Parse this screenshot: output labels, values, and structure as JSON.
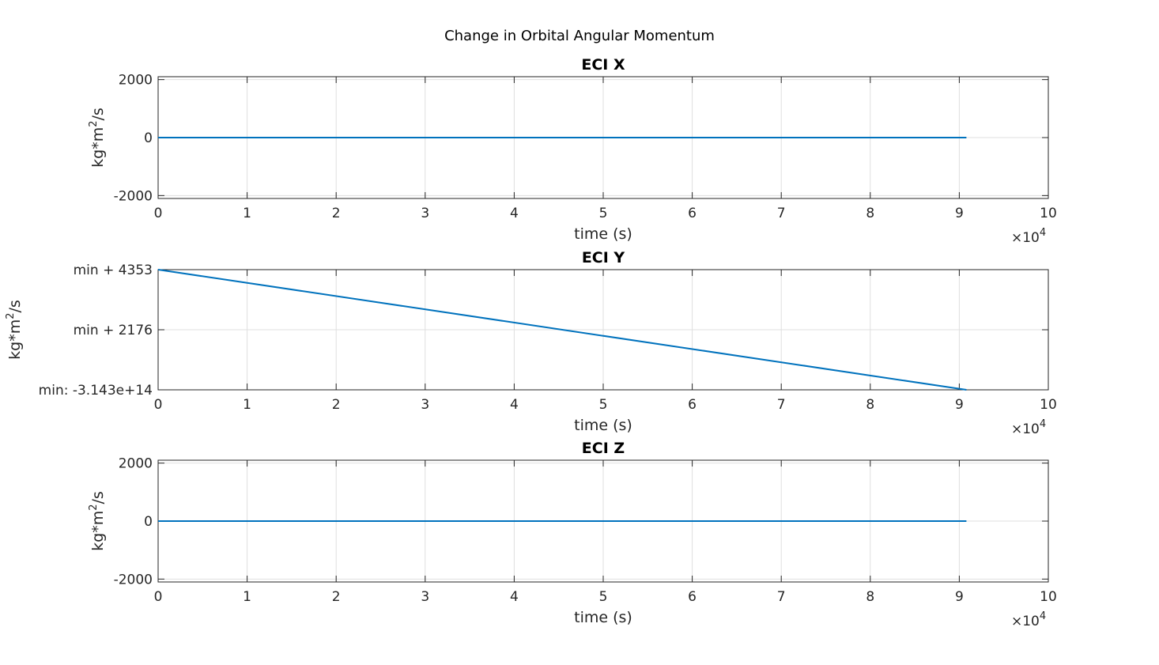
{
  "figure": {
    "title": "Change in Orbital Angular Momentum"
  },
  "chart_data": [
    {
      "type": "line",
      "title": "ECI X",
      "xlabel": "time (s)",
      "ylabel": "kg*m²/s",
      "ylabel_base": "kg*m",
      "ylabel_sup": "2",
      "ylabel_tail": "/s",
      "x_exponent_label": "×10",
      "x_exponent": "4",
      "xlim": [
        0,
        10
      ],
      "ylim": [
        -2100,
        2100
      ],
      "xticks": [
        0,
        1,
        2,
        3,
        4,
        5,
        6,
        7,
        8,
        9,
        10
      ],
      "xtick_labels": [
        "0",
        "1",
        "2",
        "3",
        "4",
        "5",
        "6",
        "7",
        "8",
        "9",
        "10"
      ],
      "yticks": [
        -2000,
        0,
        2000
      ],
      "ytick_labels": [
        "-2000",
        "0",
        "2000"
      ],
      "grid": true,
      "series": [
        {
          "x": [
            0,
            9.08
          ],
          "y": [
            0,
            0
          ],
          "color": "#0072bd"
        }
      ]
    },
    {
      "type": "line",
      "title": "ECI Y",
      "xlabel": "time (s)",
      "ylabel": "kg*m²/s",
      "ylabel_base": "kg*m",
      "ylabel_sup": "2",
      "ylabel_tail": "/s",
      "x_exponent_label": "×10",
      "x_exponent": "4",
      "xlim": [
        0,
        10
      ],
      "ylim": [
        0,
        4353
      ],
      "xticks": [
        0,
        1,
        2,
        3,
        4,
        5,
        6,
        7,
        8,
        9,
        10
      ],
      "xtick_labels": [
        "0",
        "1",
        "2",
        "3",
        "4",
        "5",
        "6",
        "7",
        "8",
        "9",
        "10"
      ],
      "yticks": [
        0,
        2176,
        4353
      ],
      "ytick_labels": [
        "min: -3.143e+14",
        "min + 2176",
        "min + 4353"
      ],
      "grid": true,
      "series": [
        {
          "x": [
            0,
            9.08
          ],
          "y": [
            4353,
            0
          ],
          "color": "#0072bd"
        }
      ]
    },
    {
      "type": "line",
      "title": "ECI Z",
      "xlabel": "time (s)",
      "ylabel": "kg*m²/s",
      "ylabel_base": "kg*m",
      "ylabel_sup": "2",
      "ylabel_tail": "/s",
      "x_exponent_label": "×10",
      "x_exponent": "4",
      "xlim": [
        0,
        10
      ],
      "ylim": [
        -2100,
        2100
      ],
      "xticks": [
        0,
        1,
        2,
        3,
        4,
        5,
        6,
        7,
        8,
        9,
        10
      ],
      "xtick_labels": [
        "0",
        "1",
        "2",
        "3",
        "4",
        "5",
        "6",
        "7",
        "8",
        "9",
        "10"
      ],
      "yticks": [
        -2000,
        0,
        2000
      ],
      "ytick_labels": [
        "-2000",
        "0",
        "2000"
      ],
      "grid": true,
      "series": [
        {
          "x": [
            0,
            9.08
          ],
          "y": [
            0,
            0
          ],
          "color": "#0072bd"
        }
      ]
    }
  ]
}
